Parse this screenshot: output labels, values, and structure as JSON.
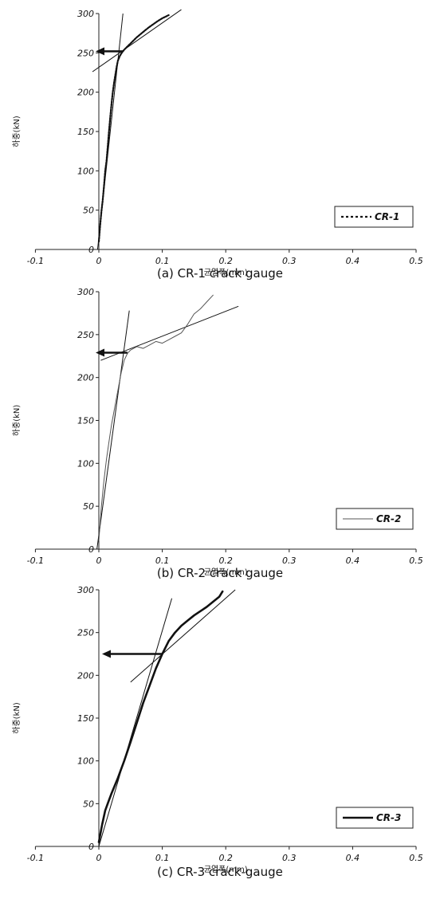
{
  "chart_data": [
    {
      "type": "line",
      "caption": "(a) CR-1 crack gauge",
      "xlabel": "균열폭(mm)",
      "ylabel": "하중(kN)",
      "xlim": [
        -0.1,
        0.5
      ],
      "ylim": [
        0,
        300
      ],
      "xticks": [
        "-0.1",
        "0",
        "0.1",
        "0.2",
        "0.3",
        "0.4",
        "0.5"
      ],
      "yticks": [
        "0",
        "50",
        "100",
        "150",
        "200",
        "250",
        "300"
      ],
      "legend_position": "right",
      "series": [
        {
          "name": "CR-1",
          "style": "dotted",
          "x": [
            0.0,
            0.002,
            0.004,
            0.006,
            0.008,
            0.01,
            0.012,
            0.014,
            0.016,
            0.018,
            0.02,
            0.022,
            0.024,
            0.026,
            0.028,
            0.03,
            0.033,
            0.036,
            0.04,
            0.045,
            0.05,
            0.055,
            0.06,
            0.066,
            0.072,
            0.078,
            0.085,
            0.092,
            0.1,
            0.11
          ],
          "y": [
            10,
            30,
            48,
            62,
            80,
            100,
            112,
            130,
            150,
            168,
            185,
            200,
            212,
            222,
            232,
            240,
            246,
            250,
            254,
            258,
            262,
            266,
            270,
            274,
            278,
            282,
            286,
            290,
            294,
            298
          ]
        }
      ],
      "guide_lines": [
        {
          "x": [
            -0.002,
            0.038
          ],
          "y": [
            0,
            300
          ]
        },
        {
          "x": [
            -0.01,
            0.13
          ],
          "y": [
            226,
            305
          ]
        }
      ],
      "arrow": {
        "x_from": 0.037,
        "x_to": -0.005,
        "y": 252
      }
    },
    {
      "type": "line",
      "caption": "(b) CR-2 crack gauge",
      "xlabel": "균열폭(mm)",
      "ylabel": "하중(kN)",
      "xlim": [
        -0.1,
        0.5
      ],
      "ylim": [
        0,
        300
      ],
      "xticks": [
        "-0.1",
        "0",
        "0.1",
        "0.2",
        "0.3",
        "0.4",
        "0.5"
      ],
      "yticks": [
        "0",
        "50",
        "100",
        "150",
        "200",
        "250",
        "300"
      ],
      "legend_position": "right",
      "series": [
        {
          "name": "CR-2",
          "style": "thin",
          "x": [
            0.0,
            0.004,
            0.008,
            0.012,
            0.016,
            0.02,
            0.025,
            0.03,
            0.035,
            0.04,
            0.045,
            0.05,
            0.06,
            0.07,
            0.08,
            0.09,
            0.1,
            0.11,
            0.12,
            0.13,
            0.14,
            0.15,
            0.16,
            0.17,
            0.18
          ],
          "y": [
            10,
            50,
            80,
            105,
            125,
            145,
            165,
            185,
            205,
            220,
            228,
            232,
            236,
            234,
            238,
            242,
            240,
            244,
            248,
            252,
            262,
            274,
            280,
            288,
            296
          ]
        }
      ],
      "guide_lines": [
        {
          "x": [
            -0.003,
            0.048
          ],
          "y": [
            0,
            278
          ]
        },
        {
          "x": [
            0.003,
            0.22
          ],
          "y": [
            220,
            283
          ]
        }
      ],
      "arrow": {
        "x_from": 0.045,
        "x_to": -0.005,
        "y": 229
      }
    },
    {
      "type": "line",
      "caption": "(c) CR-3 crack-gauge",
      "xlabel": "균열폭(mm)",
      "ylabel": "하중(kN)",
      "xlim": [
        -0.1,
        0.5
      ],
      "ylim": [
        0,
        300
      ],
      "xticks": [
        "-0.1",
        "0",
        "0.1",
        "0.2",
        "0.3",
        "0.4",
        "0.5"
      ],
      "yticks": [
        "0",
        "50",
        "100",
        "150",
        "200",
        "250",
        "300"
      ],
      "legend_position": "right",
      "series": [
        {
          "name": "CR-3",
          "style": "thick",
          "x": [
            0.0,
            0.005,
            0.01,
            0.015,
            0.02,
            0.03,
            0.04,
            0.05,
            0.06,
            0.07,
            0.08,
            0.09,
            0.1,
            0.11,
            0.12,
            0.13,
            0.14,
            0.15,
            0.16,
            0.17,
            0.18,
            0.19,
            0.195
          ],
          "y": [
            5,
            25,
            42,
            52,
            62,
            80,
            100,
            122,
            145,
            168,
            188,
            208,
            225,
            240,
            250,
            258,
            264,
            270,
            275,
            280,
            286,
            292,
            298
          ]
        }
      ],
      "guide_lines": [
        {
          "x": [
            0.0,
            0.115
          ],
          "y": [
            0,
            290
          ]
        },
        {
          "x": [
            0.05,
            0.215
          ],
          "y": [
            192,
            300
          ]
        }
      ],
      "arrow": {
        "x_from": 0.1,
        "x_to": 0.005,
        "y": 225
      }
    }
  ]
}
